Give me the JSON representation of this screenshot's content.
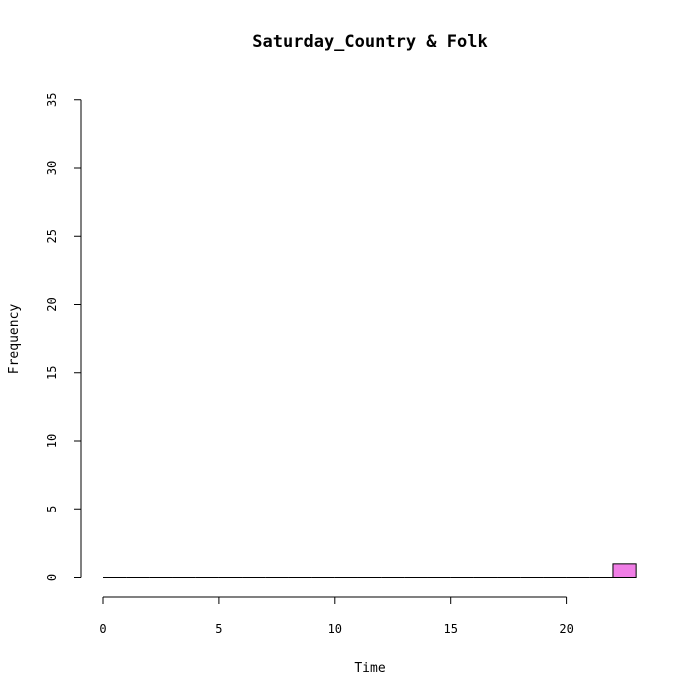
{
  "chart_data": {
    "type": "bar",
    "title": "Saturday_Country & Folk",
    "xlabel": "Time",
    "ylabel": "Frequency",
    "xlim": [
      0,
      24
    ],
    "ylim": [
      0,
      35
    ],
    "x_ticks": [
      "0",
      "5",
      "10",
      "15",
      "20"
    ],
    "y_ticks": [
      "0",
      "5",
      "10",
      "15",
      "20",
      "25",
      "30",
      "35"
    ],
    "bins": [
      {
        "start": 0,
        "end": 1,
        "count": 0
      },
      {
        "start": 1,
        "end": 2,
        "count": 0
      },
      {
        "start": 2,
        "end": 3,
        "count": 0
      },
      {
        "start": 3,
        "end": 4,
        "count": 0
      },
      {
        "start": 4,
        "end": 5,
        "count": 0
      },
      {
        "start": 5,
        "end": 6,
        "count": 0
      },
      {
        "start": 6,
        "end": 7,
        "count": 0
      },
      {
        "start": 7,
        "end": 8,
        "count": 0
      },
      {
        "start": 8,
        "end": 9,
        "count": 0
      },
      {
        "start": 9,
        "end": 10,
        "count": 0
      },
      {
        "start": 10,
        "end": 11,
        "count": 0
      },
      {
        "start": 11,
        "end": 12,
        "count": 0
      },
      {
        "start": 12,
        "end": 13,
        "count": 0
      },
      {
        "start": 13,
        "end": 14,
        "count": 0
      },
      {
        "start": 14,
        "end": 15,
        "count": 0
      },
      {
        "start": 15,
        "end": 16,
        "count": 0
      },
      {
        "start": 16,
        "end": 17,
        "count": 0
      },
      {
        "start": 17,
        "end": 18,
        "count": 0
      },
      {
        "start": 18,
        "end": 19,
        "count": 0
      },
      {
        "start": 19,
        "end": 20,
        "count": 0
      },
      {
        "start": 20,
        "end": 21,
        "count": 0
      },
      {
        "start": 21,
        "end": 22,
        "count": 0
      },
      {
        "start": 22,
        "end": 23,
        "count": 1
      }
    ],
    "bar_color": "#f07ee6",
    "grid": false
  }
}
